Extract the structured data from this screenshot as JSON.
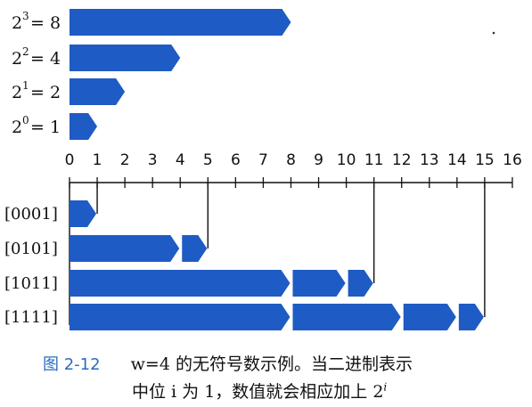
{
  "colors": {
    "bar": "#1f5bc4",
    "bar_dark": "#17479c",
    "line": "#111111",
    "caption_number": "#2a6cc0"
  },
  "chart_data": {
    "type": "bar",
    "axis": {
      "min": 0,
      "max": 16,
      "ticks": [
        "0",
        "1",
        "2",
        "3",
        "4",
        "5",
        "6",
        "7",
        "8",
        "9",
        "10",
        "11",
        "12",
        "13",
        "14",
        "15",
        "16"
      ]
    },
    "powers": [
      {
        "base": "2",
        "exp": "3",
        "eq": " = 8",
        "value": 8
      },
      {
        "base": "2",
        "exp": "2",
        "eq": " = 4",
        "value": 4
      },
      {
        "base": "2",
        "exp": "1",
        "eq": " = 2",
        "value": 2
      },
      {
        "base": "2",
        "exp": "0",
        "eq": " = 1",
        "value": 1
      }
    ],
    "rows": [
      {
        "label": "[0001]",
        "segments": [
          1
        ],
        "total": 1
      },
      {
        "label": "[0101]",
        "segments": [
          4,
          1
        ],
        "total": 5
      },
      {
        "label": "[1011]",
        "segments": [
          8,
          2,
          1
        ],
        "total": 11
      },
      {
        "label": "[1111]",
        "segments": [
          8,
          4,
          2,
          1
        ],
        "total": 15
      }
    ]
  },
  "caption": {
    "number": "图 2-12",
    "line1": "w=4 的无符号数示例。当二进制表示",
    "line2": "中位 i 为 1，数值就会相应加上 2",
    "line2_sup": "i"
  }
}
